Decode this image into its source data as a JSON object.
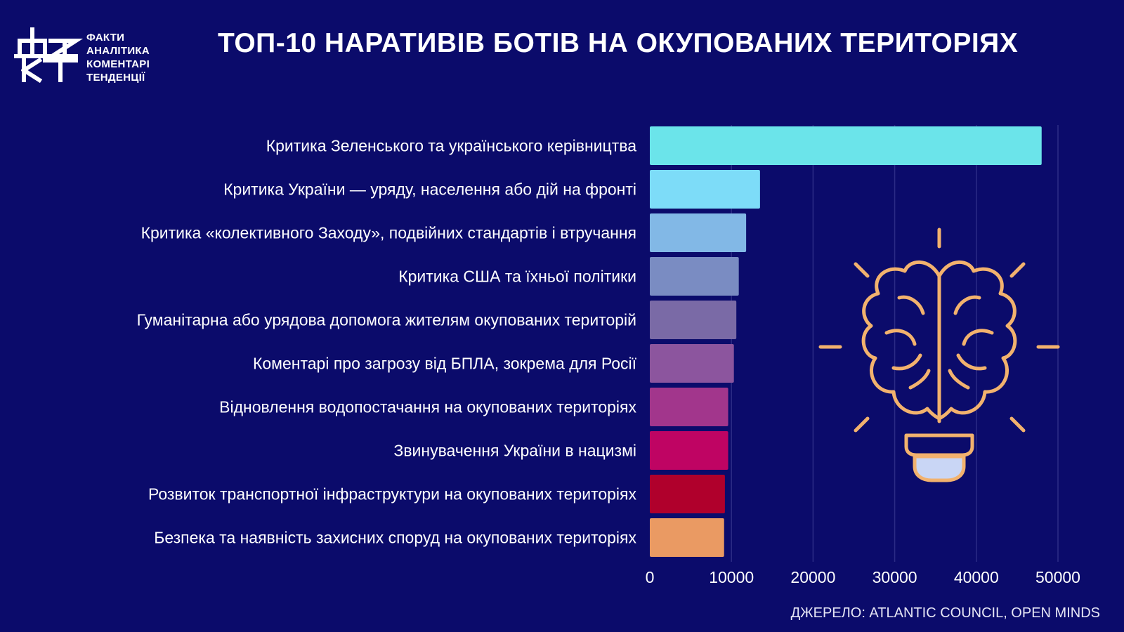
{
  "logo": {
    "mark_top": "ФА",
    "mark_bottom": "КТ",
    "lines": [
      "ФАКТИ",
      "АНАЛІТИКА",
      "КОМЕНТАРІ",
      "ТЕНДЕНЦІЇ"
    ]
  },
  "title": "ТОП-10 НАРАТИВІВ БОТІВ НА ОКУПОВАНИХ ТЕРИТОРІЯХ",
  "source": "ДЖЕРЕЛО: ATLANTIC COUNCIL, OPEN MINDS",
  "illustration": {
    "icon": "brain-lightbulb-icon",
    "color": "#f2b26e",
    "bulb_fill": "#c9d6f5"
  },
  "chart_data": {
    "type": "bar",
    "orientation": "horizontal",
    "title": "ТОП-10 НАРАТИВІВ БОТІВ НА ОКУПОВАНИХ ТЕРИТОРІЯХ",
    "xlabel": "",
    "ylabel": "",
    "xlim": [
      0,
      50000
    ],
    "ticks": [
      0,
      10000,
      20000,
      30000,
      40000,
      50000
    ],
    "tick_labels": [
      "0",
      "10000",
      "20000",
      "30000",
      "40000",
      "50000"
    ],
    "grid": true,
    "categories": [
      "Критика Зеленського та українського керівництва",
      "Критика України — уряду, населення або дій на фронті",
      "Критика «колективного Заходу», подвійних стандартів і втручання",
      "Критика США та їхньої політики",
      "Гуманітарна або урядова допомога жителям окупованих територій",
      "Коментарі про загрозу від БПЛА, зокрема для Росії",
      "Відновлення водопостачання на окупованих територіях",
      "Звинувачення України в нацизмі",
      "Розвиток транспортної інфраструктури на окупованих територіях",
      "Безпека та наявність захисних споруд на окупованих територіях"
    ],
    "values": [
      48000,
      13500,
      11800,
      10900,
      10600,
      10300,
      9600,
      9600,
      9200,
      9100
    ],
    "colors": [
      "#6be4ea",
      "#7ddcf8",
      "#82b8e6",
      "#7a8cc2",
      "#7a6aa6",
      "#8c559e",
      "#a2368c",
      "#bf0463",
      "#b0002c",
      "#ea9a63"
    ]
  }
}
